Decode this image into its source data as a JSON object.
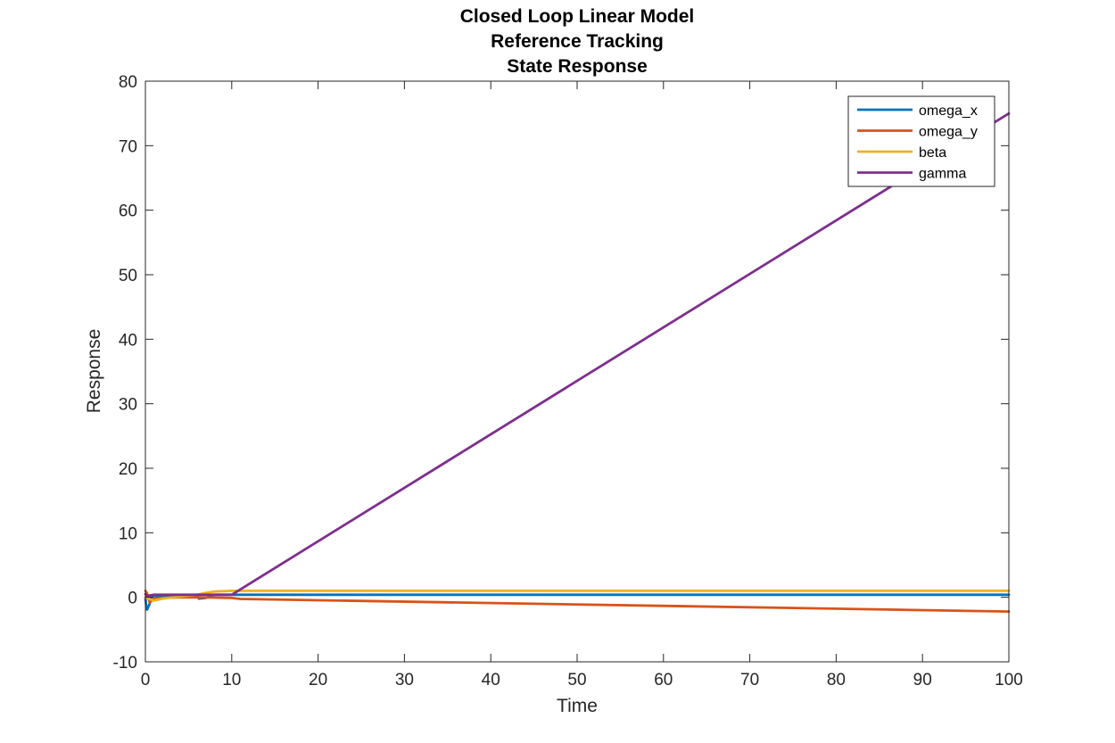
{
  "chart_data": {
    "type": "line",
    "title": [
      "Closed Loop Linear Model",
      "Reference Tracking",
      "State Response"
    ],
    "xlabel": "Time",
    "ylabel": "Response",
    "xlim": [
      0,
      100
    ],
    "ylim": [
      -10,
      80
    ],
    "xticks": [
      0,
      10,
      20,
      30,
      40,
      50,
      60,
      70,
      80,
      90,
      100
    ],
    "yticks": [
      -10,
      0,
      10,
      20,
      30,
      40,
      50,
      60,
      70,
      80
    ],
    "grid": false,
    "legend_position": "top-right",
    "series": [
      {
        "name": "omega_x",
        "color": "#0072BD",
        "x": [
          0,
          0.1,
          0.2,
          0.3,
          0.5,
          0.7,
          1.0,
          1.5,
          2,
          6,
          6.2,
          7,
          7.5,
          8,
          10,
          100
        ],
        "y": [
          0,
          -1.5,
          -1.9,
          -1.6,
          -1.0,
          0.1,
          0.2,
          0.2,
          0.2,
          0.2,
          -0.2,
          -0.1,
          0.2,
          0.4,
          0.4,
          0.4
        ]
      },
      {
        "name": "omega_y",
        "color": "#D95319",
        "x": [
          0,
          0.2,
          0.5,
          1,
          2,
          4,
          6,
          8,
          10,
          11,
          100
        ],
        "y": [
          1,
          0.6,
          -0.8,
          -0.2,
          -0.1,
          0,
          0,
          -0.05,
          -0.1,
          -0.25,
          -2.2
        ]
      },
      {
        "name": "beta",
        "color": "#EDB120",
        "x": [
          0,
          0.5,
          1,
          2,
          4,
          6,
          7,
          8,
          10,
          100
        ],
        "y": [
          0,
          -0.3,
          -0.5,
          -0.2,
          0.1,
          0.4,
          0.7,
          0.9,
          1.0,
          1.0
        ]
      },
      {
        "name": "gamma",
        "color": "#7E2F8E",
        "x": [
          0,
          0.2,
          0.5,
          1,
          2,
          5,
          10,
          100
        ],
        "y": [
          0.5,
          0.2,
          0.3,
          0.4,
          0.4,
          0.4,
          0.4,
          75
        ]
      }
    ]
  }
}
